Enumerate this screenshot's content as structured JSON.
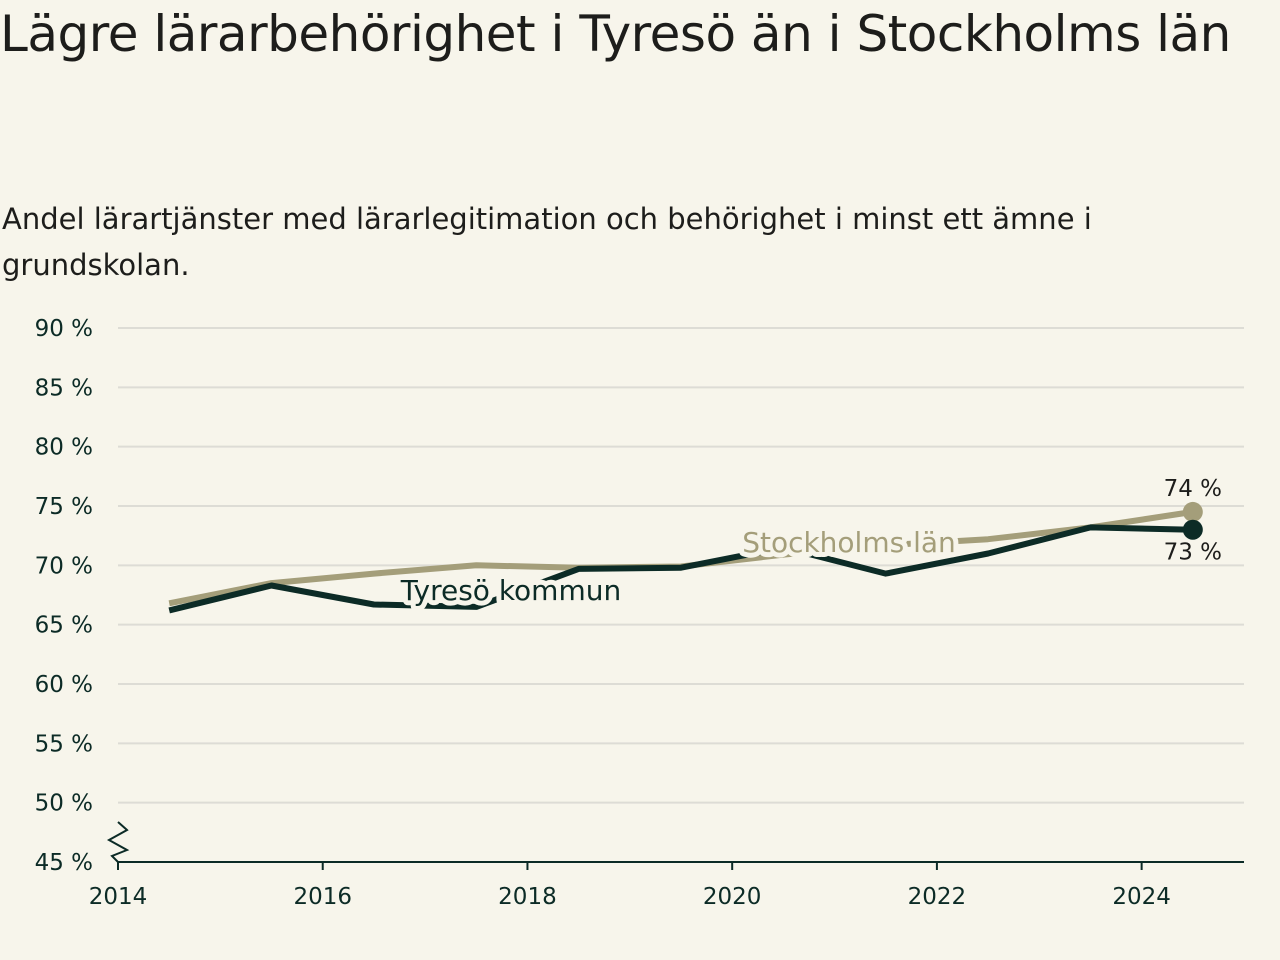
{
  "title": "Lägre lärarbehörighet i Tyresö än i Stockholms län",
  "subtitle": "Andel lärartjänster med lärarlegitimation och behörighet i minst ett ämne i grundskolan.",
  "colors": {
    "background": "#f7f5eb",
    "gridline": "#dddcd5",
    "axis": "#0c2b26",
    "tyreso": "#0c2b26",
    "stockholm": "#a49e7a"
  },
  "chart_data": {
    "type": "line",
    "y_tick_labels": [
      "45 %",
      "50 %",
      "55 %",
      "60 %",
      "65 %",
      "70 %",
      "75 %",
      "80 %",
      "85 %",
      "90 %"
    ],
    "y_ticks": [
      45,
      50,
      55,
      60,
      65,
      70,
      75,
      80,
      85,
      90
    ],
    "x_tick_labels": [
      "2014",
      "2016",
      "2018",
      "2020",
      "2022",
      "2024"
    ],
    "x_ticks": [
      2014,
      2016,
      2018,
      2020,
      2022,
      2024
    ],
    "xlim": [
      2014,
      2025
    ],
    "ylim": [
      45,
      90
    ],
    "y_axis_break": true,
    "grid": true,
    "x": [
      2014.5,
      2015.5,
      2016.5,
      2017.5,
      2018.5,
      2019.5,
      2020.5,
      2021.5,
      2022.5,
      2023.5,
      2024.5
    ],
    "series": [
      {
        "name": "Stockholms län",
        "color": "#a49e7a",
        "values": [
          66.8,
          68.5,
          69.3,
          70.0,
          69.8,
          69.9,
          70.9,
          71.7,
          72.2,
          73.2,
          74.5
        ],
        "end_label": "74 %"
      },
      {
        "name": "Tyresö kommun",
        "color": "#0c2b26",
        "values": [
          66.2,
          68.3,
          66.7,
          66.5,
          69.7,
          69.8,
          71.5,
          69.3,
          71.0,
          73.2,
          73.0
        ],
        "end_label": "73 %"
      }
    ]
  }
}
